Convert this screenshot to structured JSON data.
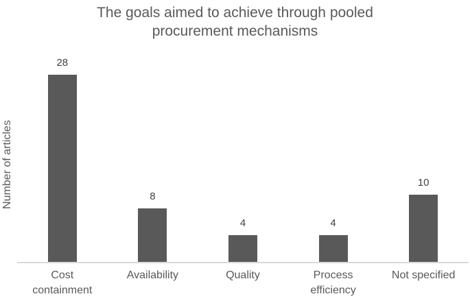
{
  "chart_data": {
    "type": "bar",
    "title": "The goals aimed to achieve through pooled procurement mechanisms",
    "categories": [
      "Cost containment",
      "Availability",
      "Quality",
      "Process efficiency",
      "Not specified"
    ],
    "values": [
      28,
      8,
      4,
      4,
      10
    ],
    "data_labels": [
      "28",
      "8",
      "4",
      "4",
      "10"
    ],
    "xlabel": "",
    "ylabel": "Number of articles",
    "ylim": [
      0,
      32
    ],
    "grid": false,
    "legend": false,
    "axis_ticks_visible": false
  },
  "colors": {
    "bar": "#595959",
    "title_text": "#595959",
    "axis_label_text": "#595959",
    "value_label_text": "#404040",
    "axis_line": "#d9d9d9",
    "background": "#ffffff"
  }
}
